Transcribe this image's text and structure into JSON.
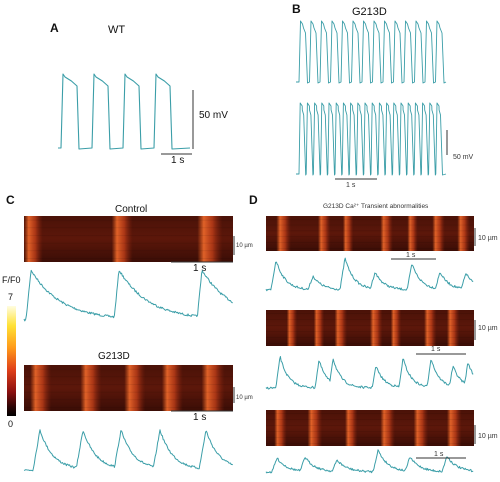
{
  "figure": {
    "panels": {
      "A": {
        "letter": "A",
        "title": "WT",
        "scale_voltage": "50 mV",
        "scale_time": "1 s"
      },
      "B": {
        "letter": "B",
        "title": "G213D",
        "scale_voltage": "50 mV",
        "scale_time": "1 s"
      },
      "C": {
        "letter": "C",
        "control_title": "Control",
        "mutant_title": "G213D",
        "scale_space_1": "10 µm",
        "scale_time_1": "1 s",
        "scale_space_2": "10 µm",
        "scale_time_2": "1 s",
        "colorbar": {
          "label": "F/F0",
          "max": "7",
          "min": "0"
        }
      },
      "D": {
        "letter": "D",
        "title": "G213D Ca²⁺ Transient abnormalities",
        "rows": [
          {
            "scale_space": "10 µm",
            "scale_time": "1 s"
          },
          {
            "scale_space": "10 µm",
            "scale_time": "1 s"
          },
          {
            "scale_space": "10 µm",
            "scale_time": "1 s"
          }
        ]
      }
    },
    "colors": {
      "trace": "#3b9ea8",
      "background": "#ffffff",
      "linescan_dark": "#3a0c06",
      "linescan_bright": "#e0501c"
    }
  }
}
